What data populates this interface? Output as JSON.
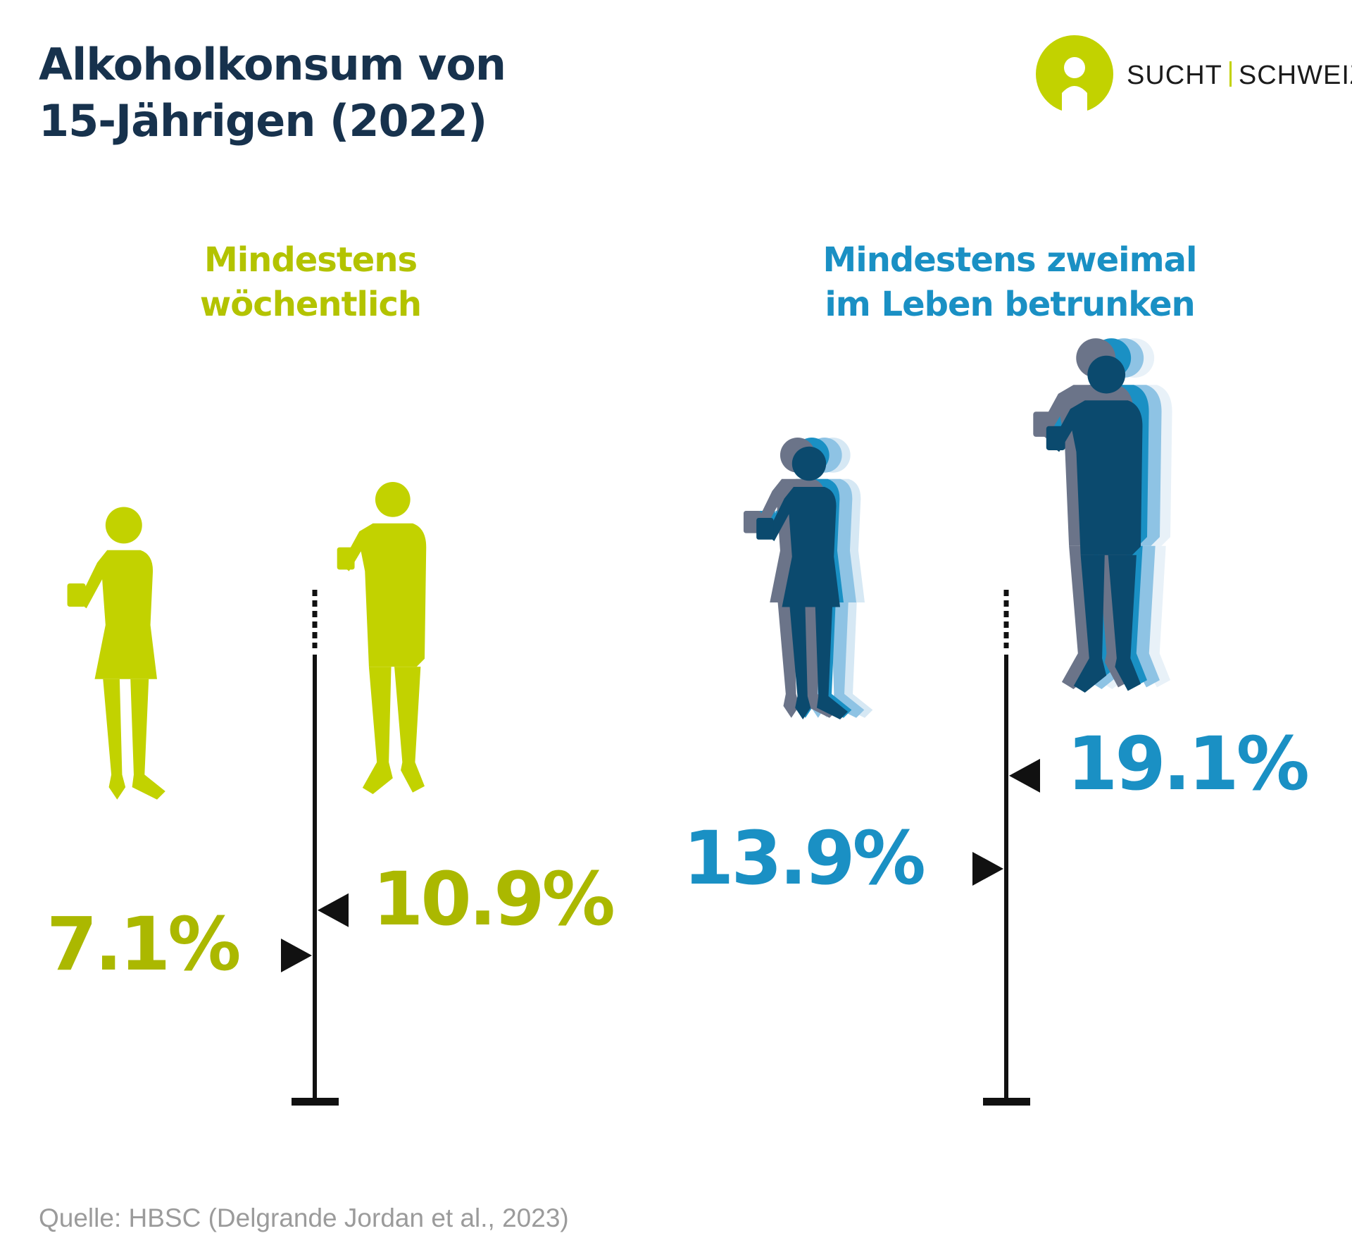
{
  "title": {
    "line1": "Alkoholkonsum von",
    "line2": "15-Jährigen (2022)"
  },
  "logo": {
    "left": "SUCHT",
    "right": "SCHWEIZ",
    "color": "#c2d200"
  },
  "colors": {
    "title": "#17324d",
    "green": "#abb800",
    "blue": "#1a90c4",
    "axis": "#111111"
  },
  "chart_data": {
    "type": "bar",
    "groups": [
      {
        "label_line1": "Mindestens",
        "label_line2": "wöchentlich",
        "color": "#abb800",
        "values": [
          {
            "value": 7.1,
            "label": "7.1%",
            "figure": "female"
          },
          {
            "value": 10.9,
            "label": "10.9%",
            "figure": "male"
          }
        ]
      },
      {
        "label_line1": "Mindestens zweimal",
        "label_line2": "im Leben betrunken",
        "color": "#1a90c4",
        "values": [
          {
            "value": 13.9,
            "label": "13.9%",
            "figure": "female"
          },
          {
            "value": 19.1,
            "label": "19.1%",
            "figure": "male"
          }
        ]
      }
    ],
    "unit": "%"
  },
  "source": "Quelle: HBSC (Delgrande Jordan et al., 2023)"
}
